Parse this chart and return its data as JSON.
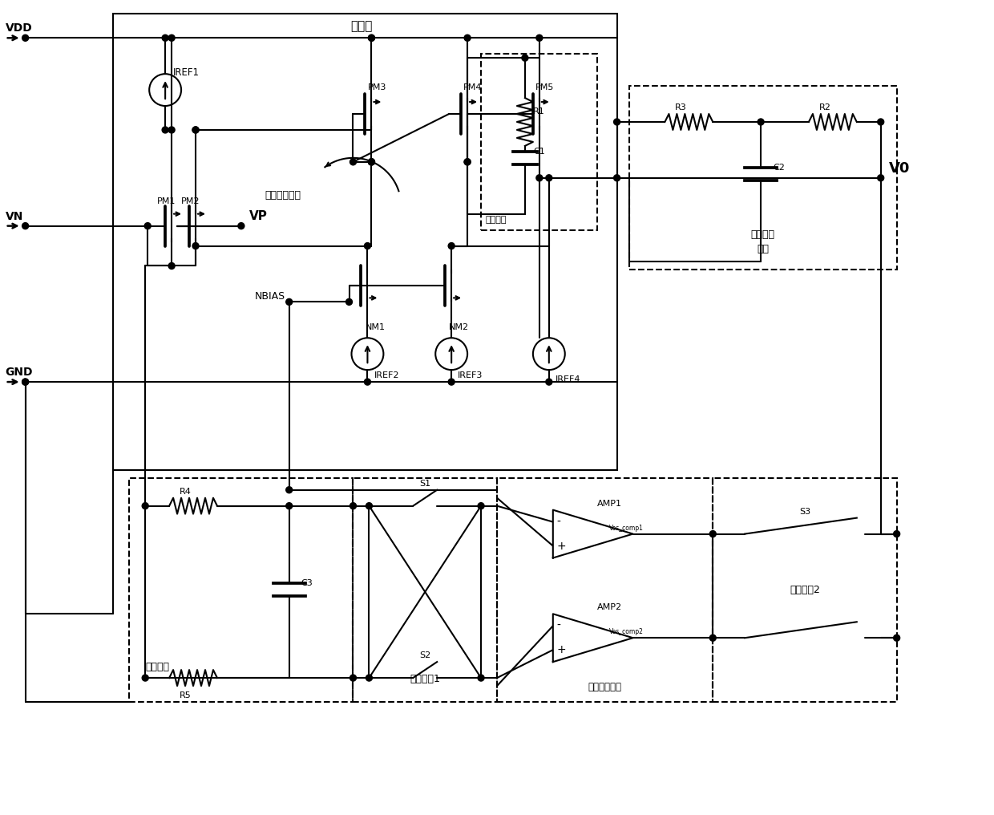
{
  "bg_color": "#ffffff",
  "line_color": "#000000",
  "lw": 1.5,
  "fig_w": 12.4,
  "fig_h": 10.16,
  "labels": {
    "VDD": "VDD",
    "VN": "VN",
    "VP": "VP",
    "GND": "GND",
    "VO": "V0",
    "IREF1": "IREF1",
    "IREF2": "IREF2",
    "IREF3": "IREF3",
    "IREF4": "IREF4",
    "PM1": "PM1",
    "PM2": "PM2",
    "PM3": "PM3",
    "PM4": "PM4",
    "PM5": "PM5",
    "NM1": "NM1",
    "NM2": "NM2",
    "NBIAS": "NBIAS",
    "R1": "R1",
    "C1": "C1",
    "R2": "R2",
    "R3": "R3",
    "C2": "C2",
    "R4": "R4",
    "R5": "R5",
    "C3": "C3",
    "S1": "S1",
    "S2": "S2",
    "S3": "S3",
    "AMP1": "AMP1",
    "AMP2": "AMP2",
    "main_amp": "主运放",
    "comp_circuit": "补偶电路",
    "dc_adj": "直流失配调节",
    "lowpass": "低通滤波",
    "chop_sw1": "斩波开公1",
    "dc_mismatch_amp": "直流失配运放",
    "chop_lowpass": "斩波低通\n滤波",
    "chop_sw2": "斩波开公2",
    "vos_comp1": "Vos_comp1",
    "vos_comp2": "Vos_comp2"
  }
}
